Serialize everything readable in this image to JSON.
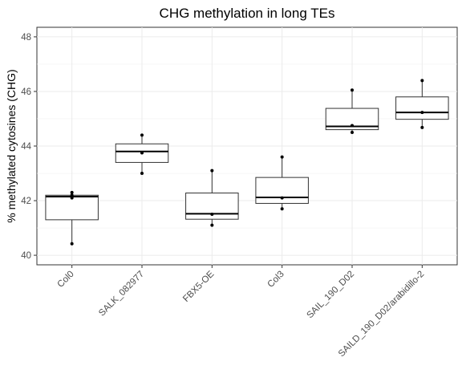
{
  "chart_data": {
    "type": "boxplot",
    "title": "CHG methylation in long TEs",
    "xlabel": "",
    "ylabel": "% methylated cytosines (CHG)",
    "ylim": [
      39.65,
      48.35
    ],
    "yticks": [
      40,
      42,
      44,
      46,
      48
    ],
    "grid": true,
    "categories": [
      "Col0",
      "SALK_082977",
      "FBX5-OE",
      "Col3",
      "SAIL_190_D02",
      "SAILD_190_D02/arabidillo-2"
    ],
    "boxes": [
      {
        "category": "Col0",
        "min": 40.4,
        "q1": 41.3,
        "median": 42.15,
        "q3": 42.2,
        "max": 42.3,
        "points": [
          40.42,
          42.1,
          42.2,
          42.3
        ]
      },
      {
        "category": "SALK_082977",
        "min": 43.0,
        "q1": 43.4,
        "median": 43.8,
        "q3": 44.08,
        "max": 44.4,
        "points": [
          43.0,
          43.75,
          44.4
        ]
      },
      {
        "category": "FBX5-OE",
        "min": 41.1,
        "q1": 41.32,
        "median": 41.52,
        "q3": 42.28,
        "max": 43.1,
        "points": [
          41.1,
          41.5,
          43.1
        ]
      },
      {
        "category": "Col3",
        "min": 41.7,
        "q1": 41.9,
        "median": 42.12,
        "q3": 42.85,
        "max": 43.6,
        "points": [
          41.7,
          42.1,
          43.6
        ]
      },
      {
        "category": "SAIL_190_D02",
        "min": 44.5,
        "q1": 44.6,
        "median": 44.72,
        "q3": 45.38,
        "max": 46.05,
        "points": [
          44.5,
          44.75,
          46.05
        ]
      },
      {
        "category": "SAILD_190_D02/arabidillo-2",
        "min": 44.68,
        "q1": 44.98,
        "median": 45.23,
        "q3": 45.8,
        "max": 46.4,
        "points": [
          44.68,
          45.23,
          46.4
        ]
      }
    ]
  }
}
